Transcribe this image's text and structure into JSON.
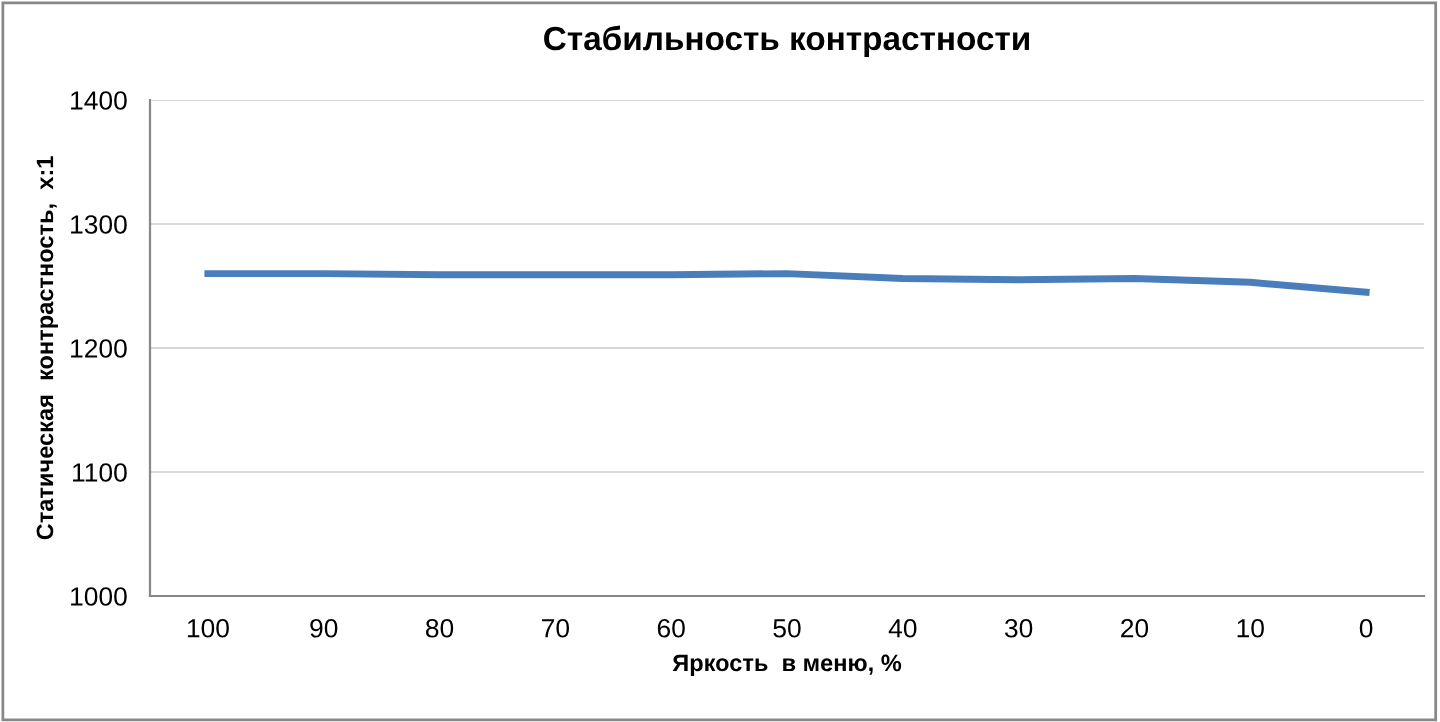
{
  "chart_data": {
    "type": "line",
    "title": "Стабильность контрастности",
    "xlabel": "Яркость  в меню, %",
    "ylabel": "Статическая  контрастность,  х:1",
    "categories": [
      "100",
      "90",
      "80",
      "70",
      "60",
      "50",
      "40",
      "30",
      "20",
      "10",
      "0"
    ],
    "series": [
      {
        "color": "#4a7ebb",
        "values": [
          1260,
          1260,
          1259,
          1259,
          1259,
          1260,
          1256,
          1255,
          1256,
          1253,
          1245
        ]
      }
    ],
    "ylim": [
      1000,
      1400
    ],
    "yticks": [
      1000,
      1100,
      1200,
      1300,
      1400
    ],
    "grid": "y",
    "legend": false,
    "marker": "none",
    "line_style": "solid"
  }
}
